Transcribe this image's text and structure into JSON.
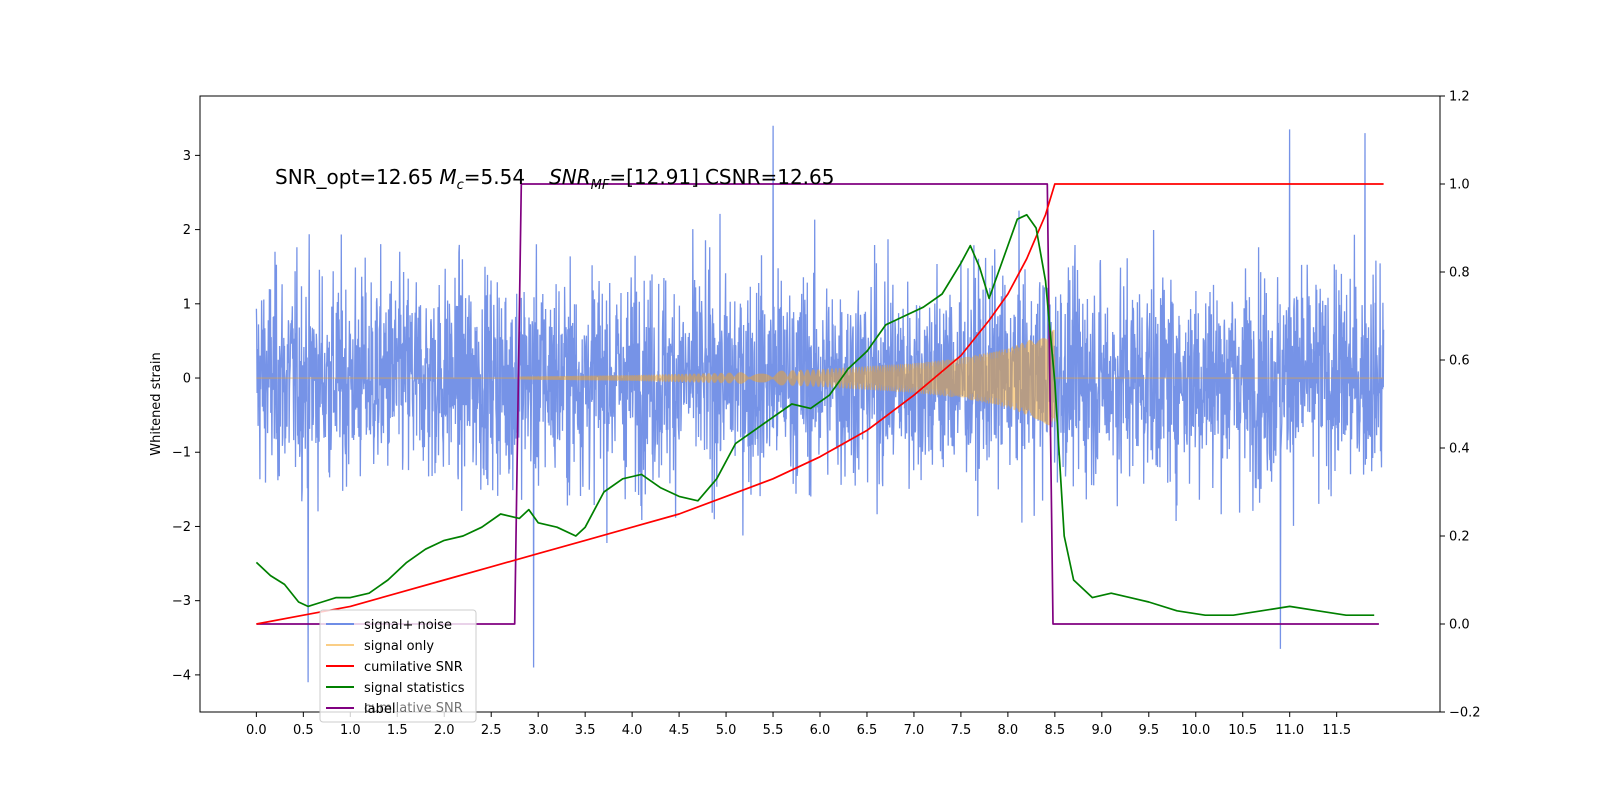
{
  "chart_data": {
    "type": "line",
    "annotation": {
      "snr_opt": "SNR_opt=12.65",
      "mc_symbol": "M",
      "mc_sub": "c",
      "mc_value": "=5.54",
      "snr_mf_symbol": "SNR",
      "snr_mf_sub": "MF",
      "snr_mf_value": "=[12.91]",
      "csnr": "CSNR=12.65"
    },
    "ylabel": "Whitened strain",
    "xlim": [
      -0.6,
      12.6
    ],
    "ylim": [
      -4.5,
      3.8
    ],
    "y2lim": [
      -0.2,
      1.2
    ],
    "x_ticks": [
      0.0,
      0.5,
      1.0,
      1.5,
      2.0,
      2.5,
      3.0,
      3.5,
      4.0,
      4.5,
      5.0,
      5.5,
      6.0,
      6.5,
      7.0,
      7.5,
      8.0,
      8.5,
      9.0,
      9.5,
      10.0,
      10.5,
      11.0,
      11.5
    ],
    "x_tick_labels": [
      "0.0",
      "0.5",
      "1.0",
      "1.5",
      "2.0",
      "2.5",
      "3.0",
      "3.5",
      "4.0",
      "4.5",
      "5.0",
      "5.5",
      "6.0",
      "6.5",
      "7.0",
      "7.5",
      "8.0",
      "8.5",
      "9.0",
      "9.5",
      "10.0",
      "10.5",
      "11.0",
      "11.5"
    ],
    "y_ticks": [
      -4,
      -3,
      -2,
      -1,
      0,
      1,
      2,
      3
    ],
    "y_tick_labels": [
      "−4",
      "−3",
      "−2",
      "−1",
      "0",
      "1",
      "2",
      "3"
    ],
    "y2_ticks": [
      -0.2,
      0.0,
      0.2,
      0.4,
      0.6,
      0.8,
      1.0,
      1.2
    ],
    "y2_tick_labels": [
      "−0.2",
      "0.0",
      "0.2",
      "0.4",
      "0.6",
      "0.8",
      "1.0",
      "1.2"
    ],
    "legend_position": "lower-left",
    "legend_overlap_text": "cumilative SNR",
    "series": [
      {
        "name": "signal+ noise",
        "color": "#6f8de6",
        "axis": "left",
        "style": "noise",
        "x_range": [
          0.0,
          12.0
        ],
        "amplitude_typical": 1.6,
        "y_extremes": [
          {
            "x": 0.55,
            "y": -4.1
          },
          {
            "x": 2.95,
            "y": -3.9
          },
          {
            "x": 5.5,
            "y": 3.4
          },
          {
            "x": 10.9,
            "y": -3.65
          },
          {
            "x": 11.0,
            "y": 3.35
          },
          {
            "x": 11.8,
            "y": 3.3
          }
        ]
      },
      {
        "name": "signal only",
        "color": "#f5a623",
        "axis": "left",
        "style": "chirp",
        "x_range": [
          2.8,
          8.5
        ],
        "envelope": [
          {
            "x": 2.8,
            "y": 0.02
          },
          {
            "x": 4.0,
            "y": 0.04
          },
          {
            "x": 5.0,
            "y": 0.07
          },
          {
            "x": 6.0,
            "y": 0.12
          },
          {
            "x": 7.0,
            "y": 0.2
          },
          {
            "x": 7.5,
            "y": 0.27
          },
          {
            "x": 8.0,
            "y": 0.4
          },
          {
            "x": 8.3,
            "y": 0.55
          },
          {
            "x": 8.45,
            "y": 0.65
          }
        ]
      },
      {
        "name": "cumilative SNR",
        "color": "#ff0000",
        "axis": "right",
        "x": [
          0.0,
          0.5,
          1.0,
          1.5,
          2.0,
          2.5,
          3.0,
          3.5,
          4.0,
          4.5,
          5.0,
          5.5,
          6.0,
          6.5,
          7.0,
          7.5,
          7.8,
          8.0,
          8.2,
          8.4,
          8.5,
          12.0
        ],
        "y": [
          0.0,
          0.02,
          0.04,
          0.07,
          0.1,
          0.13,
          0.16,
          0.19,
          0.22,
          0.25,
          0.29,
          0.33,
          0.38,
          0.44,
          0.52,
          0.61,
          0.69,
          0.75,
          0.83,
          0.93,
          1.0,
          1.0
        ]
      },
      {
        "name": "signal statistics",
        "color": "#008000",
        "axis": "right",
        "x": [
          0.0,
          0.15,
          0.3,
          0.45,
          0.55,
          0.7,
          0.85,
          1.0,
          1.2,
          1.4,
          1.6,
          1.8,
          2.0,
          2.2,
          2.4,
          2.6,
          2.8,
          2.9,
          3.0,
          3.2,
          3.4,
          3.5,
          3.7,
          3.9,
          4.1,
          4.3,
          4.5,
          4.7,
          4.9,
          5.1,
          5.3,
          5.5,
          5.7,
          5.9,
          6.1,
          6.3,
          6.5,
          6.7,
          6.9,
          7.1,
          7.3,
          7.5,
          7.6,
          7.7,
          7.8,
          7.9,
          8.0,
          8.1,
          8.2,
          8.3,
          8.4,
          8.5,
          8.6,
          8.7,
          8.9,
          9.1,
          9.3,
          9.5,
          9.8,
          10.1,
          10.4,
          10.7,
          11.0,
          11.3,
          11.6,
          11.9
        ],
        "y": [
          0.14,
          0.11,
          0.09,
          0.05,
          0.04,
          0.05,
          0.06,
          0.06,
          0.07,
          0.1,
          0.14,
          0.17,
          0.19,
          0.2,
          0.22,
          0.25,
          0.24,
          0.26,
          0.23,
          0.22,
          0.2,
          0.22,
          0.3,
          0.33,
          0.34,
          0.31,
          0.29,
          0.28,
          0.33,
          0.41,
          0.44,
          0.47,
          0.5,
          0.49,
          0.52,
          0.58,
          0.62,
          0.68,
          0.7,
          0.72,
          0.75,
          0.82,
          0.86,
          0.81,
          0.74,
          0.8,
          0.86,
          0.92,
          0.93,
          0.9,
          0.78,
          0.55,
          0.2,
          0.1,
          0.06,
          0.07,
          0.06,
          0.05,
          0.03,
          0.02,
          0.02,
          0.03,
          0.04,
          0.03,
          0.02,
          0.02
        ]
      },
      {
        "name": "label",
        "color": "#800080",
        "axis": "right",
        "x": [
          0.0,
          2.75,
          2.82,
          8.42,
          8.48,
          11.95
        ],
        "y": [
          0.0,
          0.0,
          1.0,
          1.0,
          0.0,
          0.0
        ]
      }
    ]
  }
}
